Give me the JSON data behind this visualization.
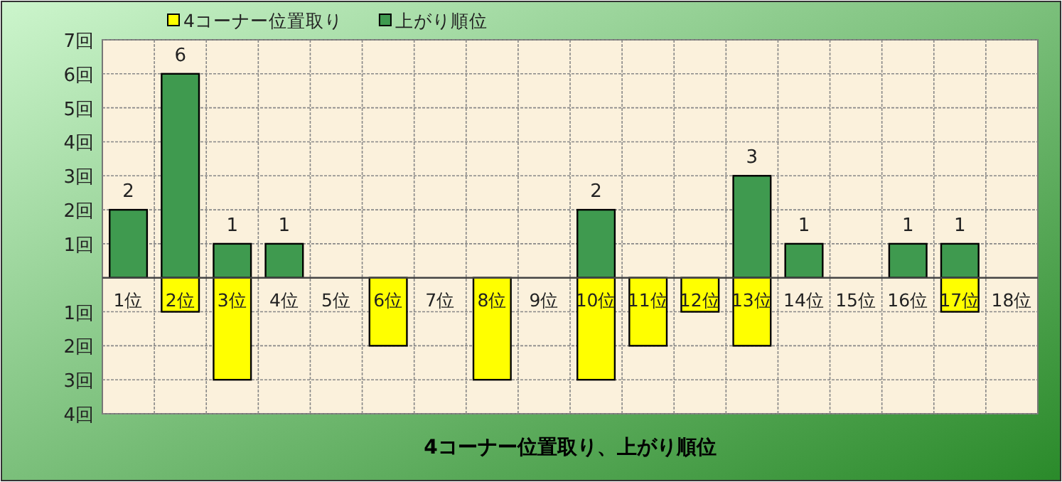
{
  "chart_data": {
    "type": "bar",
    "title": "4コーナー位置取り、上がり順位",
    "categories": [
      "1位",
      "2位",
      "3位",
      "4位",
      "5位",
      "6位",
      "7位",
      "8位",
      "9位",
      "10位",
      "11位",
      "12位",
      "13位",
      "14位",
      "15位",
      "16位",
      "17位",
      "18位"
    ],
    "series": [
      {
        "name": "4コーナー位置取り",
        "color": "#ffff00",
        "values": [
          0,
          -1,
          -3,
          0,
          0,
          -2,
          0,
          -3,
          0,
          -3,
          -2,
          -1,
          -2,
          0,
          0,
          0,
          -1,
          0
        ]
      },
      {
        "name": "上がり順位",
        "color": "#3f9a4f",
        "values": [
          2,
          6,
          1,
          1,
          0,
          0,
          0,
          0,
          0,
          2,
          0,
          0,
          3,
          1,
          0,
          1,
          1,
          0
        ],
        "value_labels": [
          "2",
          "6",
          "1",
          "1",
          null,
          null,
          null,
          null,
          null,
          "2",
          null,
          null,
          "3",
          "1",
          null,
          "1",
          "1",
          null
        ]
      }
    ],
    "ylim": [
      -4,
      7
    ],
    "yticks": [
      {
        "value": 7,
        "label": "7回"
      },
      {
        "value": 6,
        "label": "6回"
      },
      {
        "value": 5,
        "label": "5回"
      },
      {
        "value": 4,
        "label": "4回"
      },
      {
        "value": 3,
        "label": "3回"
      },
      {
        "value": 2,
        "label": "2回"
      },
      {
        "value": 1,
        "label": "1回"
      },
      {
        "value": -1,
        "label": "1回"
      },
      {
        "value": -2,
        "label": "2回"
      },
      {
        "value": -3,
        "label": "3回"
      },
      {
        "value": -4,
        "label": "4回"
      }
    ],
    "grid": true,
    "legend": "top"
  }
}
